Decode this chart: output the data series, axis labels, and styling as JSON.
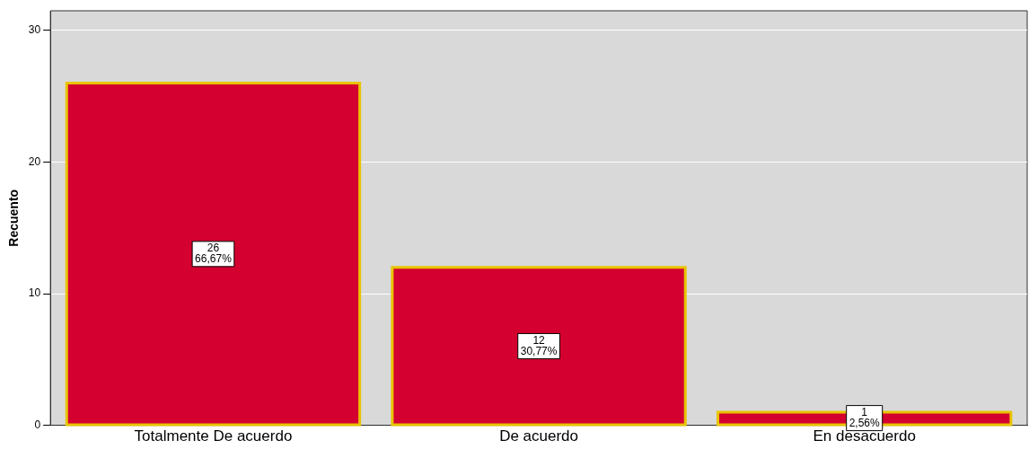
{
  "chart_data": {
    "type": "bar",
    "ylabel": "Recuento",
    "categories": [
      "Totalmente De acuerdo",
      "De acuerdo",
      "En desacuerdo"
    ],
    "values": [
      26,
      12,
      1
    ],
    "value_labels": [
      "26\n66,67%",
      "12\n30,77%",
      "1\n2,56%"
    ],
    "color": "#d40030",
    "ylim": [
      0,
      31.5
    ],
    "yticks": [
      0,
      10,
      20,
      30
    ],
    "grid": "y",
    "legend": false
  }
}
